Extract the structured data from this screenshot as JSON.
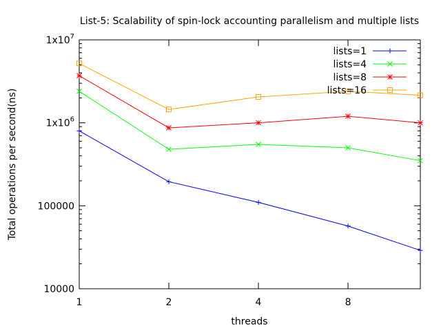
{
  "chart_data": {
    "type": "line",
    "title": "List-5: Scalability of spin-lock accounting parallelism and multiple lists",
    "xlabel": "threads",
    "ylabel": "Total operations per second(ns)",
    "x": [
      1,
      2,
      4,
      8,
      14
    ],
    "x_scale": "log2",
    "xlim": [
      1,
      14
    ],
    "x_ticks": [
      {
        "value": 1,
        "label": "1"
      },
      {
        "value": 2,
        "label": "2"
      },
      {
        "value": 4,
        "label": "4"
      },
      {
        "value": 8,
        "label": "8"
      }
    ],
    "y_scale": "log10",
    "ylim": [
      10000,
      10000000
    ],
    "y_ticks": [
      {
        "value": 10000,
        "base": "10000",
        "exp": ""
      },
      {
        "value": 100000,
        "base": "100000",
        "exp": ""
      },
      {
        "value": 1000000,
        "base": "1x10",
        "exp": "6"
      },
      {
        "value": 10000000,
        "base": "1x10",
        "exp": "7"
      }
    ],
    "grid": false,
    "legend_position": "top-right",
    "series": [
      {
        "name": "lists=1",
        "color": "#0000ff",
        "marker": "plus",
        "values": [
          800000,
          195000,
          110000,
          57000,
          29000
        ]
      },
      {
        "name": "lists=4",
        "color": "#00ff00",
        "marker": "cross",
        "values": [
          2400000,
          480000,
          550000,
          500000,
          350000
        ]
      },
      {
        "name": "lists=8",
        "color": "#ff0000",
        "marker": "star",
        "values": [
          3700000,
          870000,
          1000000,
          1200000,
          1000000
        ]
      },
      {
        "name": "lists=16",
        "color": "#ffa500",
        "marker": "square",
        "values": [
          5200000,
          1450000,
          2050000,
          2400000,
          2150000
        ]
      }
    ]
  }
}
